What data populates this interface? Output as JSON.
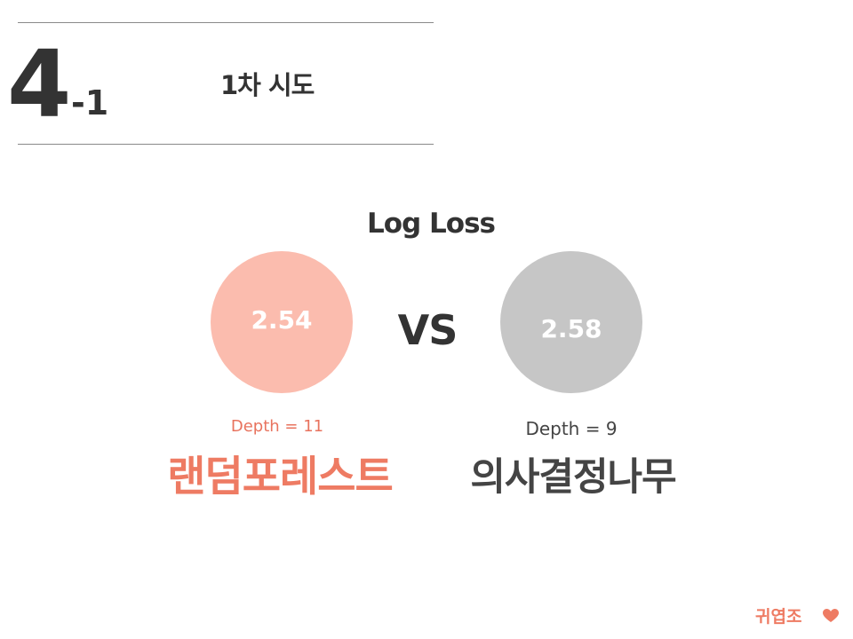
{
  "section": {
    "number": "4",
    "sub": "-1",
    "title": "1차 시도"
  },
  "metric_title": "Log Loss",
  "vs_label": "VS",
  "left_model": {
    "score": "2.54",
    "depth": "Depth = 11",
    "name": "랜덤포레스트",
    "color": "#fbbcae",
    "text_color": "#ee7b63"
  },
  "right_model": {
    "score": "2.58",
    "depth": "Depth = 9",
    "name": "의사결정나무",
    "color": "#c6c6c6",
    "text_color": "#444444"
  },
  "footer": {
    "team": "귀엽조",
    "icon": "heart-icon",
    "accent": "#ee7b63"
  }
}
